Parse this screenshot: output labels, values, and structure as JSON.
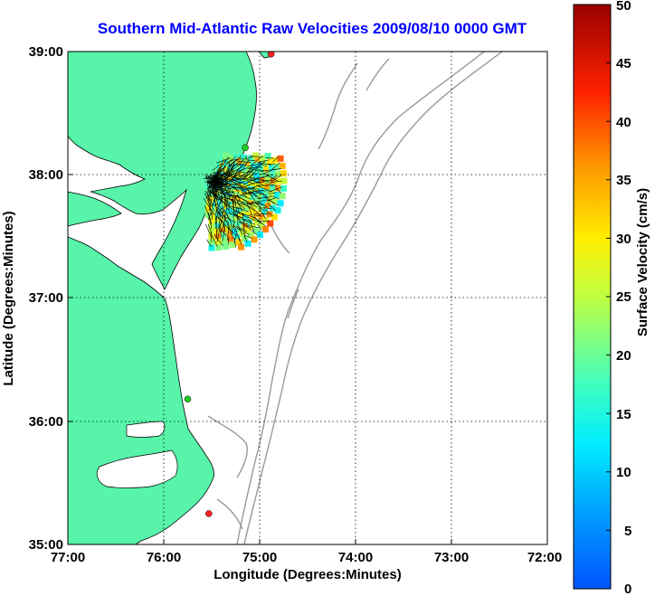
{
  "title": "Southern Mid-Atlantic Raw Velocities 2009/08/10 0000 GMT",
  "axes": {
    "xlabel": "Longitude (Degrees:Minutes)",
    "ylabel": "Latitude (Degrees:Minutes)",
    "x_ticks": [
      "77:00",
      "76:00",
      "75:00",
      "74:00",
      "73:00",
      "72:00"
    ],
    "y_ticks": [
      "39:00",
      "38:00",
      "37:00",
      "36:00",
      "35:00"
    ],
    "x_range_deg_west": [
      77,
      72
    ],
    "y_range_deg_north": [
      35,
      39
    ],
    "grid": "dotted"
  },
  "colorbar": {
    "label": "Surface Velocity (cm/s)",
    "ticks": [
      "50",
      "45",
      "40",
      "35",
      "30",
      "25",
      "20",
      "15",
      "10",
      "5",
      "0"
    ],
    "range": [
      0,
      50
    ],
    "colormap": "jet"
  },
  "colors": {
    "land": "#57f4a9",
    "coast_line": "#000000",
    "bathymetry": "#999999",
    "title": "#0000ff",
    "station_green": "#22cc22",
    "station_red": "#ff2222"
  },
  "stations": [
    {
      "lat": 38.98,
      "lon": -74.88,
      "color": "red"
    },
    {
      "lat": 38.22,
      "lon": -75.15,
      "color": "green"
    },
    {
      "lat": 36.18,
      "lon": -75.75,
      "color": "green"
    },
    {
      "lat": 35.25,
      "lon": -75.53,
      "color": "red"
    }
  ],
  "velocity_field": {
    "origin_lat": 37.95,
    "origin_lon": -75.5,
    "speed_range_cm_s": [
      12,
      38
    ]
  }
}
